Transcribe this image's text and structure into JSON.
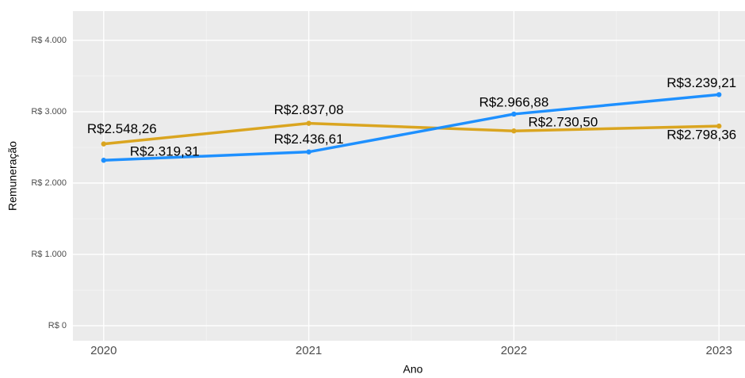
{
  "chart_data": {
    "type": "line",
    "x_label": "Ano",
    "y_label": "Remuneração",
    "x": [
      2020,
      2021,
      2022,
      2023
    ],
    "xlim": [
      2019.85,
      2023.15
    ],
    "xticks": [
      2020,
      2021,
      2022,
      2023
    ],
    "ylim": [
      -210,
      4410
    ],
    "yticks": [
      {
        "value": 0,
        "label": "R$ 0"
      },
      {
        "value": 1000,
        "label": "R$ 1.000"
      },
      {
        "value": 2000,
        "label": "R$ 2.000"
      },
      {
        "value": 3000,
        "label": "R$ 3.000"
      },
      {
        "value": 4000,
        "label": "R$ 4.000"
      }
    ],
    "grid": true,
    "series": [
      {
        "color": "#daa520",
        "values": [
          2548.26,
          2837.08,
          2730.5,
          2798.36
        ],
        "value_labels": [
          "R$2.548,26",
          "R$2.837,08",
          "R$2.730,50",
          "R$2.798,36"
        ]
      },
      {
        "color": "#1e90ff",
        "values": [
          2319.31,
          2436.61,
          2966.88,
          3239.21
        ],
        "value_labels": [
          "R$2.319,31",
          "R$2.436,61",
          "R$2.966,88",
          "R$3.239,21"
        ]
      }
    ]
  }
}
